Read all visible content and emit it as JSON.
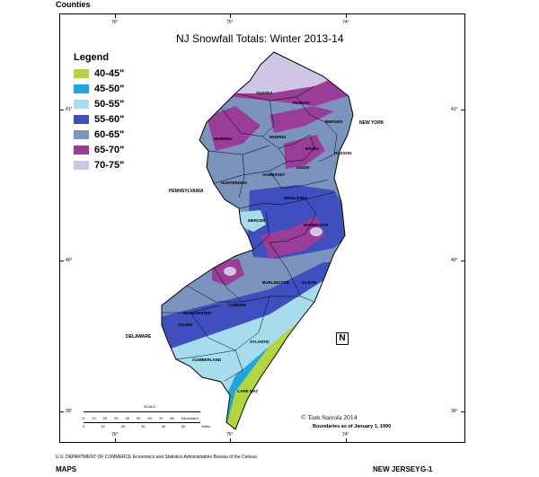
{
  "header": {
    "label": "Counties"
  },
  "title": "NJ Snowfall Totals: Winter 2013-14",
  "legend": {
    "title": "Legend",
    "items": [
      {
        "label": "40-45\"",
        "color": "#b5d63a"
      },
      {
        "label": "45-50\"",
        "color": "#1fa6e0"
      },
      {
        "label": "50-55\"",
        "color": "#a6dcec"
      },
      {
        "label": "55-60\"",
        "color": "#3f4fbd"
      },
      {
        "label": "60-65\"",
        "color": "#7a94bd"
      },
      {
        "label": "65-70\"",
        "color": "#9a3d98"
      },
      {
        "label": "70-75\"",
        "color": "#cfc6e6"
      }
    ]
  },
  "grid": {
    "lon_labels": [
      "76°",
      "75°",
      "74°"
    ],
    "lat_labels": [
      "41°",
      "40°",
      "39°"
    ]
  },
  "counties": [
    "SUSSEX",
    "PASSAIC",
    "BERGEN",
    "WARREN",
    "MORRIS",
    "ESSEX",
    "HUDSON",
    "UNION",
    "HUNTERDON",
    "SOMERSET",
    "MIDDLESEX",
    "MERCER",
    "MONMOUTH",
    "BURLINGTON",
    "OCEAN",
    "CAMDEN",
    "GLOUCESTER",
    "SALEM",
    "ATLANTIC",
    "CUMBERLAND",
    "CAPE MAY"
  ],
  "states": {
    "new_york": "NEW YORK",
    "pennsylvania": "PENNSYLVANIA",
    "delaware": "DELAWARE"
  },
  "north_arrow": "N",
  "scale": {
    "title": "SCALE",
    "km_ticks": [
      "0",
      "10",
      "20",
      "30",
      "40",
      "50",
      "60",
      "70",
      "80"
    ],
    "km_unit": "Kilometers",
    "mi_ticks": [
      "0",
      "10",
      "20",
      "30",
      "40",
      "50"
    ],
    "mi_unit": "Miles"
  },
  "credit": "© Tom Stavola 2014",
  "boundary_note": "Boundaries as of January 1, 1990",
  "footer": {
    "agency": "U.S. DEPARTMENT OF COMMERCE  Economics and Statistics Administration  Bureau of the Census",
    "maps": "MAPS",
    "state": "NEW JERSEY",
    "sheet": "G-1"
  }
}
